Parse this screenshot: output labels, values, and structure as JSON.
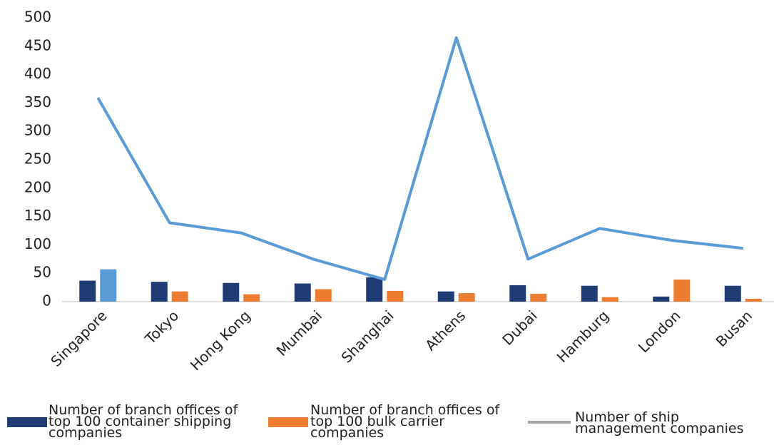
{
  "chart_data": {
    "type": "bar_line",
    "categories": [
      "Singapore",
      "Tokyo",
      "Hong Kong",
      "Mumbai",
      "Shanghai",
      "Athens",
      "Dubai",
      "Hamburg",
      "London",
      "Busan"
    ],
    "series": [
      {
        "name": "Number of branch offices of top 100 container shipping companies",
        "type": "bar",
        "color": "#1f3c74",
        "values": [
          37,
          35,
          33,
          32,
          43,
          18,
          29,
          28,
          9,
          28
        ]
      },
      {
        "name": "Number of branch offices of top 100 bulk carrier companies",
        "type": "bar",
        "color": "#ed7d31",
        "colors": [
          "#5b9bd5",
          "#ed7d31",
          "#ed7d31",
          "#ed7d31",
          "#ed7d31",
          "#ed7d31",
          "#ed7d31",
          "#ed7d31",
          "#ed7d31",
          "#ed7d31"
        ],
        "values": [
          57,
          18,
          13,
          22,
          19,
          15,
          14,
          8,
          39,
          5
        ]
      },
      {
        "name": "Number of ship management companies",
        "type": "line",
        "color": "#5b9bd5",
        "legend_color": "#a5a5a5",
        "values": [
          359,
          139,
          121,
          75,
          39,
          465,
          75,
          129,
          108,
          94
        ]
      }
    ],
    "ylim": [
      0,
      500
    ],
    "yticks": [
      0,
      50,
      100,
      150,
      200,
      250,
      300,
      350,
      400,
      450,
      500
    ],
    "grid": false,
    "legend": "bottom"
  }
}
